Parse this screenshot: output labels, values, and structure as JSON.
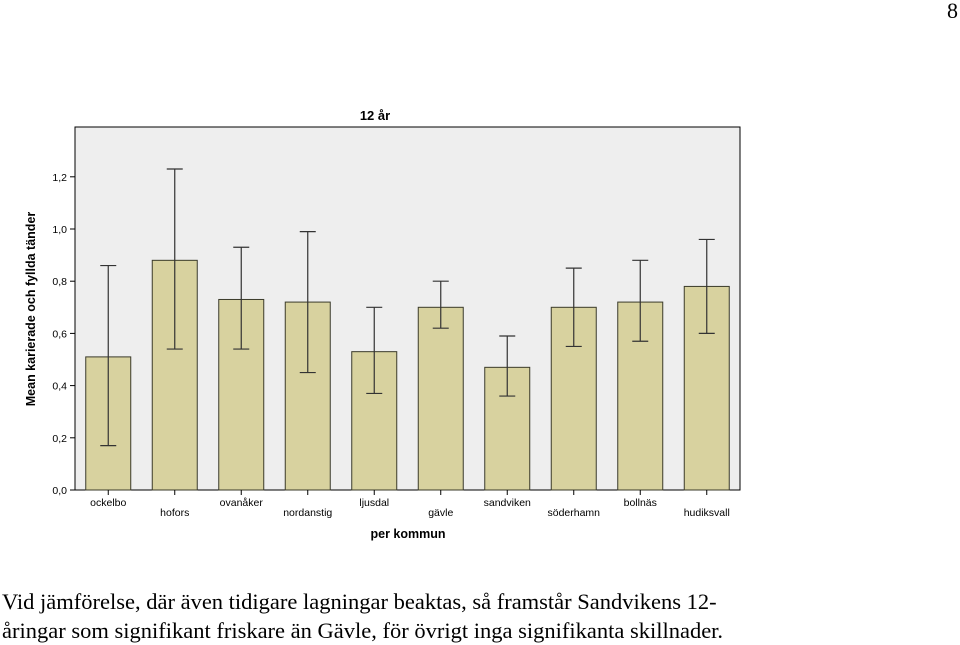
{
  "page": {
    "page_number": "8",
    "caption_lines": [
      "Vid jämförelse, där även tidigare lagningar beaktas, så framstår Sandvikens 12-",
      "åringar som signifikant friskare än Gävle, för övrigt inga signifikanta skillnader."
    ]
  },
  "chart_data": {
    "type": "bar",
    "title": "12 år",
    "xlabel": "per kommun",
    "ylabel": "Mean karierade och fyllda tänder",
    "categories": [
      "ockelbo",
      "hofors",
      "ovanåker",
      "nordanstig",
      "ljusdal",
      "gävle",
      "sandviken",
      "söderhamn",
      "bollnäs",
      "hudiksvall"
    ],
    "values": [
      0.51,
      0.88,
      0.73,
      0.72,
      0.53,
      0.7,
      0.47,
      0.7,
      0.72,
      0.78
    ],
    "error_low": [
      0.17,
      0.54,
      0.54,
      0.45,
      0.37,
      0.62,
      0.36,
      0.55,
      0.57,
      0.6
    ],
    "error_high": [
      0.86,
      1.23,
      0.93,
      0.99,
      0.7,
      0.8,
      0.59,
      0.85,
      0.88,
      0.96
    ],
    "ylim": [
      0,
      1.3
    ],
    "yticks": [
      0,
      0.2,
      0.4,
      0.6,
      0.8,
      1.0,
      1.2
    ],
    "ytick_labels": [
      "0,0",
      "0,2",
      "0,4",
      "0,6",
      "0,8",
      "1,0",
      "1,2"
    ],
    "grid": false,
    "colors": {
      "bar_fill": "#d8d29f",
      "bar_stroke": "#3a3a2a",
      "plot_background": "#eeeeee",
      "axis": "#000000"
    }
  }
}
